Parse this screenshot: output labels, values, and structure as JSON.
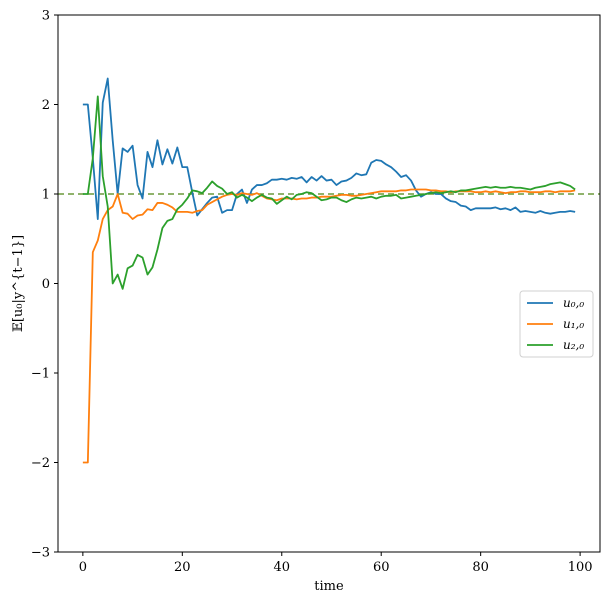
{
  "chart_data": {
    "type": "line",
    "title": "",
    "xlabel": "time",
    "ylabel": "𝔼[u₀|y^{t−1}]",
    "xlim": [
      -5,
      104
    ],
    "ylim": [
      -3,
      3
    ],
    "xticks": [
      0,
      20,
      40,
      60,
      80,
      100
    ],
    "yticks": [
      -3,
      -2,
      -1,
      0,
      1,
      2,
      3
    ],
    "xtick_labels": [
      "0",
      "20",
      "40",
      "60",
      "80",
      "100"
    ],
    "ytick_labels": [
      "−3",
      "−2",
      "−1",
      "0",
      "1",
      "2",
      "3"
    ],
    "grid": false,
    "legend_position": "center-right",
    "reference_line": {
      "y": 1,
      "style": "dashed",
      "color": "#6b9a3c"
    },
    "series": [
      {
        "name": "u_{0,0}",
        "legend_label": "u₀,₀",
        "color": "#1f77b4",
        "x": [
          0,
          1,
          2,
          3,
          4,
          5,
          6,
          7,
          8,
          9,
          10,
          11,
          12,
          13,
          14,
          15,
          16,
          17,
          18,
          19,
          20,
          21,
          22,
          23,
          24,
          25,
          26,
          27,
          28,
          29,
          30,
          31,
          32,
          33,
          34,
          35,
          36,
          37,
          38,
          39,
          40,
          41,
          42,
          43,
          44,
          45,
          46,
          47,
          48,
          49,
          50,
          51,
          52,
          53,
          54,
          55,
          56,
          57,
          58,
          59,
          60,
          61,
          62,
          63,
          64,
          65,
          66,
          67,
          68,
          69,
          70,
          71,
          72,
          73,
          74,
          75,
          76,
          77,
          78,
          79,
          80,
          81,
          82,
          83,
          84,
          85,
          86,
          87,
          88,
          89,
          90,
          91,
          92,
          93,
          94,
          95,
          96,
          97,
          98,
          99
        ],
        "y": [
          2.0,
          2.0,
          1.4,
          0.72,
          2.02,
          2.29,
          1.6,
          1.0,
          1.51,
          1.47,
          1.54,
          1.1,
          0.95,
          1.47,
          1.3,
          1.6,
          1.33,
          1.5,
          1.34,
          1.52,
          1.3,
          1.3,
          1.02,
          0.76,
          0.83,
          0.9,
          0.96,
          0.97,
          0.79,
          0.82,
          0.82,
          1.0,
          1.05,
          0.9,
          1.05,
          1.1,
          1.1,
          1.12,
          1.16,
          1.16,
          1.17,
          1.16,
          1.18,
          1.17,
          1.19,
          1.13,
          1.19,
          1.15,
          1.2,
          1.15,
          1.16,
          1.1,
          1.14,
          1.15,
          1.18,
          1.23,
          1.21,
          1.22,
          1.35,
          1.38,
          1.37,
          1.33,
          1.3,
          1.25,
          1.19,
          1.21,
          1.15,
          1.04,
          0.97,
          1.0,
          1.02,
          1.0,
          1.0,
          0.95,
          0.92,
          0.91,
          0.87,
          0.86,
          0.82,
          0.84,
          0.84,
          0.84,
          0.84,
          0.85,
          0.83,
          0.84,
          0.82,
          0.85,
          0.8,
          0.81,
          0.8,
          0.79,
          0.81,
          0.79,
          0.78,
          0.79,
          0.8,
          0.8,
          0.81,
          0.8
        ]
      },
      {
        "name": "u_{1,0}",
        "legend_label": "u₁,₀",
        "color": "#ff7f0e",
        "x": [
          0,
          1,
          2,
          3,
          4,
          5,
          6,
          7,
          8,
          9,
          10,
          11,
          12,
          13,
          14,
          15,
          16,
          17,
          18,
          19,
          20,
          21,
          22,
          23,
          24,
          25,
          26,
          27,
          28,
          29,
          30,
          31,
          32,
          33,
          34,
          35,
          36,
          37,
          38,
          39,
          40,
          41,
          42,
          43,
          44,
          45,
          46,
          47,
          48,
          49,
          50,
          51,
          52,
          53,
          54,
          55,
          56,
          57,
          58,
          59,
          60,
          61,
          62,
          63,
          64,
          65,
          66,
          67,
          68,
          69,
          70,
          71,
          72,
          73,
          74,
          75,
          76,
          77,
          78,
          79,
          80,
          81,
          82,
          83,
          84,
          85,
          86,
          87,
          88,
          89,
          90,
          91,
          92,
          93,
          94,
          95,
          96,
          97,
          98,
          99
        ],
        "y": [
          -2.0,
          -2.0,
          0.35,
          0.48,
          0.72,
          0.82,
          0.86,
          1.0,
          0.79,
          0.78,
          0.72,
          0.76,
          0.77,
          0.83,
          0.82,
          0.9,
          0.9,
          0.88,
          0.85,
          0.8,
          0.8,
          0.8,
          0.79,
          0.81,
          0.82,
          0.88,
          0.91,
          0.94,
          0.97,
          0.99,
          1.0,
          0.99,
          1.01,
          1.0,
          0.99,
          1.01,
          0.98,
          0.95,
          0.94,
          0.93,
          0.95,
          0.95,
          0.95,
          0.94,
          0.95,
          0.95,
          0.96,
          0.96,
          0.97,
          0.97,
          0.97,
          0.98,
          0.99,
          0.99,
          0.98,
          0.98,
          0.99,
          1.0,
          1.01,
          1.02,
          1.03,
          1.03,
          1.03,
          1.03,
          1.04,
          1.04,
          1.05,
          1.05,
          1.05,
          1.05,
          1.04,
          1.04,
          1.03,
          1.03,
          1.02,
          1.03,
          1.03,
          1.03,
          1.03,
          1.02,
          1.02,
          1.03,
          1.02,
          1.03,
          1.02,
          1.01,
          1.02,
          1.02,
          1.03,
          1.03,
          1.02,
          1.02,
          1.02,
          1.03,
          1.03,
          1.02,
          1.03,
          1.03,
          1.03,
          1.04
        ]
      },
      {
        "name": "u_{2,0}",
        "legend_label": "u₂,₀",
        "color": "#2ca02c",
        "x": [
          0,
          1,
          2,
          3,
          4,
          5,
          6,
          7,
          8,
          9,
          10,
          11,
          12,
          13,
          14,
          15,
          16,
          17,
          18,
          19,
          20,
          21,
          22,
          23,
          24,
          25,
          26,
          27,
          28,
          29,
          30,
          31,
          32,
          33,
          34,
          35,
          36,
          37,
          38,
          39,
          40,
          41,
          42,
          43,
          44,
          45,
          46,
          47,
          48,
          49,
          50,
          51,
          52,
          53,
          54,
          55,
          56,
          57,
          58,
          59,
          60,
          61,
          62,
          63,
          64,
          65,
          66,
          67,
          68,
          69,
          70,
          71,
          72,
          73,
          74,
          75,
          76,
          77,
          78,
          79,
          80,
          81,
          82,
          83,
          84,
          85,
          86,
          87,
          88,
          89,
          90,
          91,
          92,
          93,
          94,
          95,
          96,
          97,
          98,
          99
        ],
        "y": [
          1.0,
          1.0,
          1.4,
          2.09,
          1.2,
          0.86,
          0.0,
          0.1,
          -0.06,
          0.17,
          0.2,
          0.32,
          0.29,
          0.1,
          0.18,
          0.38,
          0.62,
          0.7,
          0.72,
          0.83,
          0.88,
          0.95,
          1.04,
          1.03,
          1.01,
          1.07,
          1.14,
          1.09,
          1.06,
          1.0,
          1.02,
          0.96,
          0.99,
          0.96,
          0.92,
          0.96,
          0.99,
          0.96,
          0.95,
          0.89,
          0.93,
          0.97,
          0.94,
          0.99,
          1.0,
          1.02,
          1.01,
          0.97,
          0.93,
          0.94,
          0.96,
          0.96,
          0.93,
          0.91,
          0.94,
          0.96,
          0.95,
          0.96,
          0.97,
          0.95,
          0.97,
          0.98,
          0.98,
          0.99,
          0.95,
          0.96,
          0.97,
          0.98,
          0.99,
          1.0,
          1.01,
          1.02,
          1.01,
          1.02,
          1.03,
          1.02,
          1.04,
          1.04,
          1.05,
          1.06,
          1.07,
          1.08,
          1.07,
          1.08,
          1.07,
          1.07,
          1.08,
          1.07,
          1.07,
          1.06,
          1.05,
          1.07,
          1.08,
          1.09,
          1.11,
          1.12,
          1.13,
          1.11,
          1.09,
          1.05
        ]
      }
    ]
  }
}
